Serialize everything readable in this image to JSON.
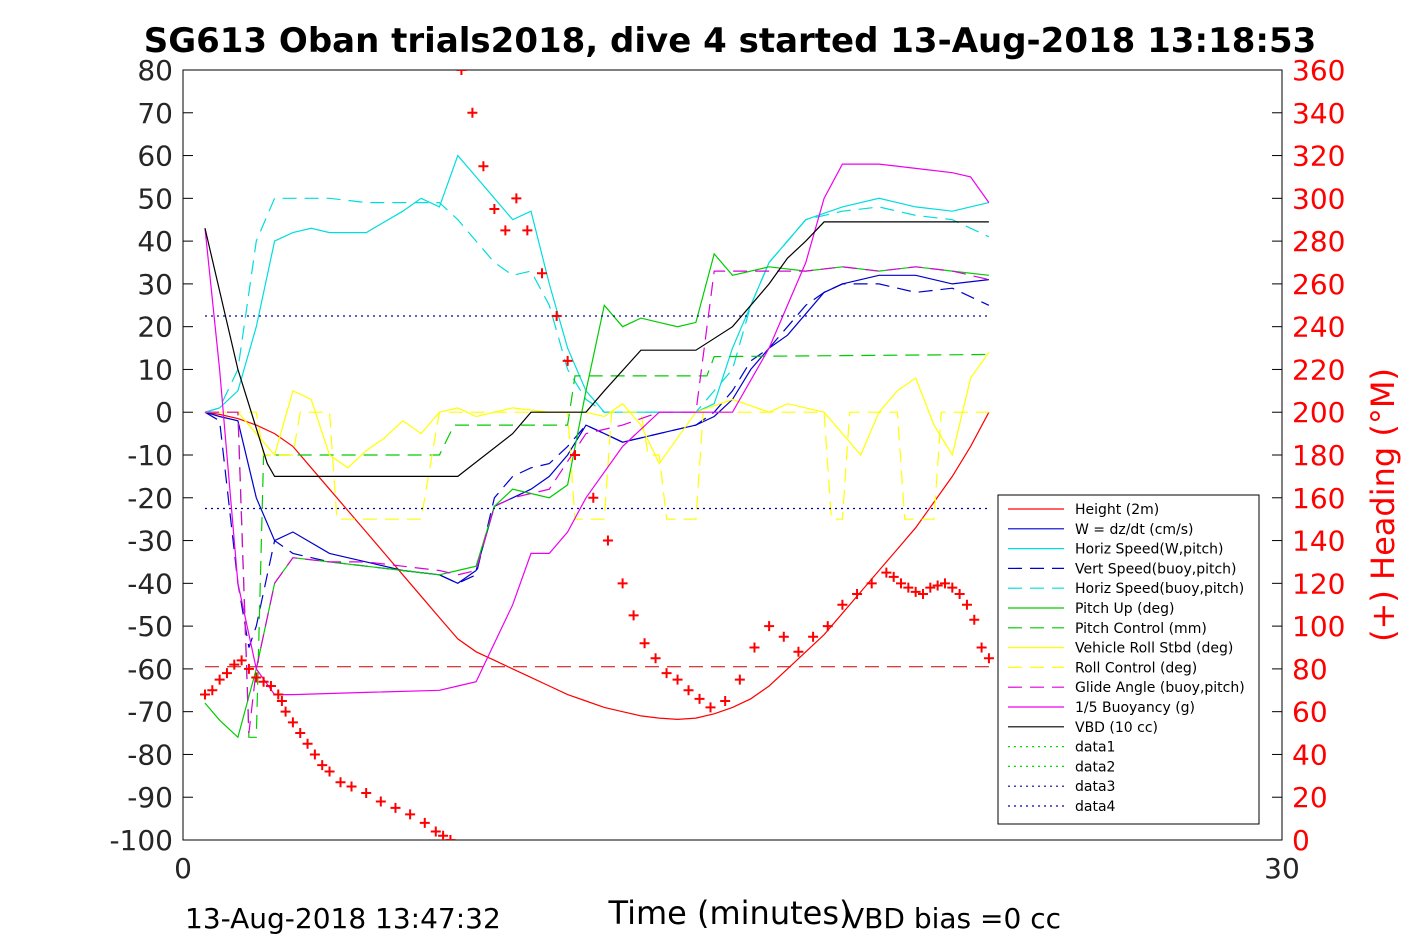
{
  "chart_data": {
    "type": "line",
    "title": "SG613 Oban trials2018, dive 4 started 13-Aug-2018 13:18:53",
    "xlabel": "Time (minutes)",
    "ylabel_right": "(+) Heading (°M)",
    "xlim": [
      0,
      30
    ],
    "ylim": [
      -100,
      80
    ],
    "ylim_right": [
      0,
      360
    ],
    "x_ticks": [
      "0",
      "30"
    ],
    "y_ticks": [
      "80",
      "70",
      "60",
      "50",
      "40",
      "30",
      "20",
      "10",
      "0",
      "-10",
      "-20",
      "-30",
      "-40",
      "-50",
      "-60",
      "-70",
      "-80",
      "-90",
      "-100"
    ],
    "y_ticks_right": [
      "360",
      "340",
      "320",
      "300",
      "280",
      "260",
      "240",
      "220",
      "200",
      "180",
      "160",
      "140",
      "120",
      "100",
      "80",
      "60",
      "40",
      "20",
      "0"
    ],
    "legend_position": "bottom-right",
    "grid": false,
    "colors": {
      "axes": "#000000",
      "right_axis": "#ff0000",
      "heading": "#ff0000"
    },
    "series": [
      {
        "name": "Height (2m)",
        "color": "#ff0000",
        "style": "solid",
        "x": [
          0.6,
          1.0,
          1.5,
          2.0,
          2.5,
          3.0,
          3.5,
          4.0,
          4.5,
          5.0,
          5.5,
          6.0,
          6.5,
          7.0,
          7.5,
          8.0,
          8.5,
          9.0,
          9.5,
          10.0,
          10.5,
          11.0,
          11.5,
          12.0,
          12.5,
          13.0,
          13.5,
          14.0,
          14.5,
          15.0,
          15.5,
          16.0,
          16.5,
          17.0,
          17.5,
          18.0,
          18.5,
          19.0,
          19.5,
          20.0,
          20.5,
          21.0,
          21.5,
          22.0
        ],
        "y": [
          0,
          -0.5,
          -1.5,
          -3,
          -5,
          -8,
          -13,
          -18,
          -23,
          -28,
          -33,
          -38,
          -43,
          -48,
          -53,
          -56,
          -58,
          -60,
          -62,
          -64,
          -66,
          -67.5,
          -69,
          -70,
          -71,
          -71.5,
          -71.8,
          -71.5,
          -70.5,
          -69,
          -67,
          -64,
          -60,
          -56,
          -52,
          -47,
          -42,
          -37,
          -32,
          -27,
          -21,
          -15,
          -8,
          0
        ]
      },
      {
        "name": "W = dz/dt (cm/s)",
        "color": "#0000cc",
        "style": "solid",
        "x": [
          0.6,
          1.0,
          1.5,
          2.0,
          2.5,
          3.0,
          4.0,
          5.0,
          6.0,
          7.0,
          7.5,
          8.0,
          8.5,
          9.0,
          9.5,
          10.0,
          10.5,
          11.0,
          11.5,
          12.0,
          12.5,
          13.0,
          13.5,
          14.0,
          14.5,
          15.0,
          15.5,
          16.0,
          16.5,
          17.0,
          17.5,
          18.0,
          19.0,
          20.0,
          21.0,
          22.0
        ],
        "y": [
          0,
          -1,
          -2,
          -20,
          -30,
          -28,
          -33,
          -35,
          -37,
          -38,
          -40,
          -37,
          -22,
          -20,
          -18,
          -15,
          -10,
          -3,
          -5,
          -7,
          -6,
          -5,
          -4,
          -3,
          -1,
          3,
          10,
          15,
          18,
          23,
          28,
          30,
          32,
          32,
          30,
          31
        ]
      },
      {
        "name": "Horiz Speed(W,pitch)",
        "color": "#00dddd",
        "style": "solid",
        "x": [
          0.6,
          1.0,
          1.5,
          2.0,
          2.5,
          3.0,
          3.5,
          4.0,
          5.0,
          6.0,
          6.5,
          7.0,
          7.5,
          8.0,
          8.5,
          9.0,
          9.5,
          10.0,
          10.5,
          11.0,
          11.5,
          12.0,
          13.0,
          13.5,
          14.0,
          14.5,
          15.0,
          15.5,
          16.0,
          17.0,
          18.0,
          19.0,
          20.0,
          21.0,
          22.0
        ],
        "y": [
          0,
          1,
          5,
          20,
          40,
          42,
          43,
          42,
          42,
          47,
          50,
          48,
          60,
          55,
          50,
          45,
          47,
          30,
          15,
          5,
          0,
          0,
          0,
          0,
          0,
          2,
          15,
          25,
          35,
          45,
          48,
          50,
          48,
          47,
          49
        ]
      },
      {
        "name": "Vert Speed(buoy,pitch)",
        "color": "#0000cc",
        "style": "dashed",
        "x": [
          0.6,
          1.0,
          1.5,
          1.8,
          2.0,
          2.5,
          3.0,
          4.0,
          5.0,
          6.0,
          7.0,
          7.5,
          8.0,
          8.5,
          9.0,
          9.5,
          10.0,
          10.5,
          11.0,
          11.5,
          12.0,
          12.5,
          13.0,
          13.5,
          14.0,
          14.5,
          15.0,
          15.5,
          16.0,
          16.5,
          17.0,
          17.5,
          18.0,
          19.0,
          20.0,
          21.0,
          22.0
        ],
        "y": [
          0,
          -2,
          -40,
          -55,
          -50,
          -30,
          -33,
          -35,
          -36,
          -37,
          -38,
          -40,
          -38,
          -20,
          -15,
          -13,
          -12,
          -8,
          -3,
          -5,
          -7,
          -6,
          -5,
          -4,
          -3,
          0,
          5,
          12,
          15,
          20,
          25,
          28,
          30,
          30,
          28,
          29,
          25
        ]
      },
      {
        "name": "Horiz Speed(buoy,pitch)",
        "color": "#00dddd",
        "style": "dashed",
        "x": [
          0.6,
          1.0,
          1.5,
          2.0,
          2.5,
          3.0,
          4.0,
          5.0,
          6.0,
          7.0,
          7.5,
          8.0,
          8.5,
          9.0,
          9.5,
          10.0,
          10.5,
          11.0,
          11.5,
          12.0,
          13.0,
          14.0,
          15.0,
          15.5,
          16.0,
          17.0,
          18.0,
          19.0,
          20.0,
          21.0,
          22.0
        ],
        "y": [
          0,
          1,
          10,
          40,
          50,
          50,
          50,
          49,
          49,
          49,
          45,
          40,
          35,
          32,
          33,
          25,
          10,
          3,
          0,
          0,
          0,
          0,
          10,
          25,
          35,
          45,
          47,
          48,
          46,
          45,
          41
        ]
      },
      {
        "name": "Pitch Up (deg)",
        "color": "#00cc00",
        "style": "solid",
        "x": [
          0.6,
          1.0,
          1.5,
          2.0,
          2.5,
          3.0,
          4.0,
          5.0,
          6.0,
          7.0,
          7.5,
          8.0,
          8.5,
          9.0,
          9.5,
          10.0,
          10.5,
          11.0,
          11.5,
          12.0,
          12.5,
          13.0,
          13.5,
          14.0,
          14.5,
          15.0,
          16.0,
          17.0,
          18.0,
          19.0,
          20.0,
          21.0,
          22.0
        ],
        "y": [
          -68,
          -72,
          -76,
          -60,
          -40,
          -34,
          -35,
          -36,
          -37,
          -38,
          -37,
          -36,
          -22,
          -18,
          -19,
          -20,
          -17,
          5,
          25,
          20,
          22,
          21,
          20,
          21,
          37,
          32,
          34,
          33,
          34,
          33,
          34,
          33,
          32
        ]
      },
      {
        "name": "Pitch Control (mm)",
        "color": "#00cc00",
        "style": "dashed",
        "x": [
          0.6,
          1.5,
          1.8,
          2.0,
          2.2,
          4.0,
          7.0,
          7.4,
          7.6,
          9.0,
          9.2,
          10.5,
          10.7,
          12.5,
          12.7,
          14.3,
          14.5,
          22.0
        ],
        "y": [
          0,
          0,
          -76,
          -76,
          -10,
          -10,
          -10,
          -3,
          -3,
          -3,
          -3,
          -3,
          8.5,
          8.5,
          8.5,
          8.5,
          13,
          13.5
        ]
      },
      {
        "name": "Vehicle Roll Stbd (deg)",
        "color": "#ffff00",
        "style": "solid",
        "x": [
          0.6,
          1.5,
          2.5,
          3.0,
          3.5,
          4.0,
          4.5,
          5.0,
          5.5,
          6.0,
          6.5,
          7.0,
          7.5,
          8.0,
          9.0,
          10.0,
          11.0,
          11.5,
          12.0,
          12.5,
          13.0,
          14.0,
          15.0,
          16.0,
          16.5,
          17.0,
          17.5,
          18.0,
          18.5,
          19.0,
          19.5,
          20.0,
          20.5,
          21.0,
          21.5,
          22.0
        ],
        "y": [
          0,
          0,
          -10,
          5,
          3,
          -10,
          -13,
          -9,
          -6,
          -2,
          -5,
          0,
          1,
          -1,
          1,
          0,
          0,
          -1,
          2,
          -3,
          -12,
          0,
          3,
          0,
          2,
          1,
          0,
          -5,
          -10,
          0,
          5,
          8,
          -3,
          -10,
          8,
          14
        ]
      },
      {
        "name": "Roll Control (deg)",
        "color": "#ffff00",
        "style": "dashed",
        "x": [
          0.6,
          2.0,
          2.2,
          3.0,
          3.2,
          4.0,
          4.2,
          6.0,
          6.5,
          7.0,
          7.3,
          9.0,
          9.5,
          10.5,
          10.7,
          11.5,
          11.7,
          12.5,
          12.7,
          13.0,
          13.2,
          14.0,
          14.2,
          17.5,
          17.7,
          18.0,
          18.2,
          19.5,
          19.7,
          20.5,
          20.7,
          21.0,
          21.2,
          22.0
        ],
        "y": [
          0,
          0,
          -10,
          -10,
          0,
          0,
          -25,
          -25,
          -25,
          0,
          0,
          0,
          0,
          0,
          -25,
          -25,
          0,
          0,
          -10,
          -10,
          -25,
          -25,
          0,
          0,
          -25,
          -25,
          0,
          0,
          -25,
          -25,
          0,
          0,
          0,
          0
        ]
      },
      {
        "name": "Glide Angle (buoy,pitch)",
        "color": "#dd00dd",
        "style": "dashed",
        "x": [
          0.6,
          1.5,
          1.8,
          2.0,
          2.5,
          3.0,
          4.0,
          5.0,
          6.0,
          7.0,
          7.5,
          8.0,
          8.5,
          9.0,
          10.0,
          11.0,
          12.0,
          13.0,
          14.0,
          14.5,
          15.0,
          16.0,
          17.0,
          18.0,
          19.0,
          20.0,
          21.0,
          22.0
        ],
        "y": [
          0,
          0,
          -75,
          -60,
          -40,
          -34,
          -35,
          -35,
          -36,
          -37,
          -38,
          -37,
          -22,
          -20,
          -18,
          -5,
          -3,
          0,
          0,
          33,
          33,
          33,
          33,
          34,
          33,
          34,
          33,
          31
        ]
      },
      {
        "name": "1/5 Buoyancy (g)",
        "color": "#ee00ee",
        "style": "solid",
        "x": [
          0.6,
          1.0,
          1.5,
          2.0,
          2.5,
          3.0,
          5.0,
          7.0,
          7.5,
          8.0,
          9.0,
          9.5,
          10.0,
          10.5,
          11.0,
          12.0,
          13.0,
          14.0,
          15.0,
          16.0,
          17.0,
          17.5,
          18.0,
          19.0,
          20.0,
          21.0,
          21.5,
          22.0
        ],
        "y": [
          43,
          10,
          -40,
          -60,
          -66,
          -66,
          -65.5,
          -65,
          -64,
          -63,
          -45,
          -33,
          -33,
          -28,
          -20,
          -8,
          0,
          0,
          0,
          15,
          35,
          50,
          58,
          58,
          57,
          56,
          55,
          49
        ]
      },
      {
        "name": "VBD (10 cc)",
        "color": "#000000",
        "style": "solid",
        "x": [
          0.6,
          1.5,
          2.3,
          2.5,
          7.0,
          7.5,
          9.0,
          9.5,
          10.0,
          11.0,
          11.5,
          12.5,
          13.0,
          14.0,
          15.0,
          16.0,
          16.5,
          17.0,
          17.5,
          18.0,
          22.0
        ],
        "y": [
          43,
          10,
          -12,
          -15,
          -15,
          -15,
          -5,
          0,
          0,
          0,
          5,
          14.5,
          14.5,
          14.5,
          20,
          30,
          36,
          40,
          44.5,
          44.5,
          44.5
        ]
      },
      {
        "name": "data1",
        "color": "#00dd00",
        "style": "dotted",
        "x": [],
        "y": []
      },
      {
        "name": "data2",
        "color": "#00dd00",
        "style": "dotted",
        "x": [],
        "y": []
      },
      {
        "name": "data3",
        "color": "#0000aa",
        "style": "dotted",
        "x": [
          0.6,
          22.0
        ],
        "y": [
          22.5,
          22.5
        ]
      },
      {
        "name": "data4",
        "color": "#0000aa",
        "style": "dotted",
        "x": [
          0.6,
          22.0
        ],
        "y": [
          -22.5,
          -22.5
        ]
      }
    ],
    "reference_lines": [
      {
        "color": "#cc0000",
        "style": "dashed",
        "y": -59.5,
        "x": [
          0.6,
          22.0
        ]
      }
    ],
    "heading": {
      "x": [
        0.6,
        0.8,
        1.0,
        1.2,
        1.4,
        1.6,
        1.8,
        2.0,
        2.2,
        2.4,
        2.6,
        2.7,
        2.8,
        3.0,
        3.2,
        3.4,
        3.6,
        3.8,
        4.0,
        4.3,
        4.6,
        5.0,
        5.4,
        5.8,
        6.2,
        6.6,
        6.9,
        7.1,
        7.3,
        7.6,
        7.9,
        8.2,
        8.5,
        8.8,
        9.1,
        9.4,
        9.8,
        10.2,
        10.5,
        10.7,
        11.2,
        11.6,
        12.0,
        12.3,
        12.6,
        12.9,
        13.2,
        13.5,
        13.8,
        14.1,
        14.4,
        14.8,
        15.2,
        15.6,
        16.0,
        16.4,
        16.8,
        17.2,
        17.6,
        18.0,
        18.4,
        18.8,
        19.2,
        19.4,
        19.6,
        19.8,
        20.0,
        20.2,
        20.4,
        20.6,
        20.8,
        21.0,
        21.2,
        21.4,
        21.6,
        21.8,
        22.0
      ],
      "y": [
        68,
        70,
        75,
        78,
        82,
        84,
        80,
        76,
        74,
        72,
        68,
        65,
        60,
        55,
        50,
        45,
        40,
        35,
        32,
        27,
        25,
        22,
        18,
        15,
        12,
        8,
        4,
        2,
        0,
        360,
        340,
        315,
        295,
        285,
        300,
        285,
        265,
        245,
        224,
        180,
        160,
        140,
        120,
        105,
        92,
        85,
        78,
        75,
        70,
        66,
        62,
        65,
        75,
        90,
        100,
        95,
        88,
        95,
        100,
        110,
        115,
        120,
        125,
        123,
        120,
        118,
        116,
        115,
        118,
        119,
        120,
        118,
        115,
        110,
        103,
        90,
        85
      ]
    },
    "annotations": {
      "footer_datetime": "13-Aug-2018 13:47:32",
      "footer_vbd": "VBD bias =0 cc"
    }
  }
}
